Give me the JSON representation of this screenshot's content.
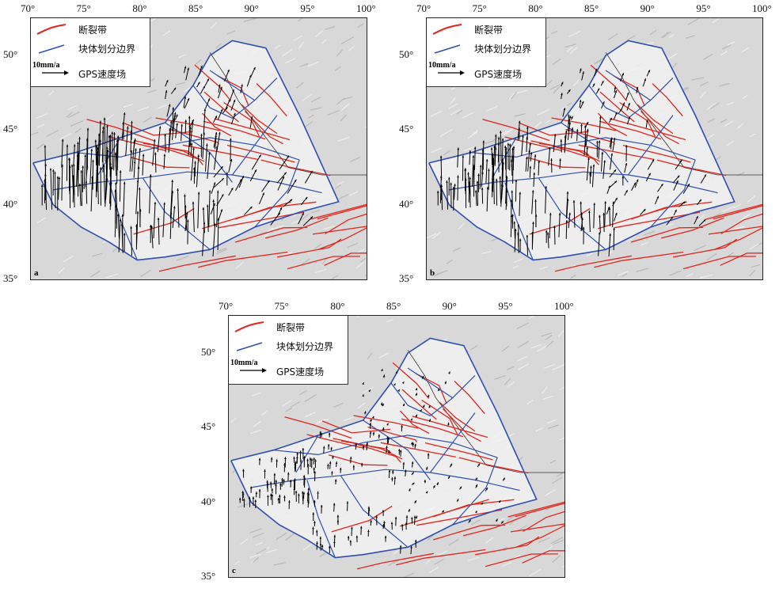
{
  "axes": {
    "lon_ticks": [
      "70°",
      "75°",
      "80°",
      "85°",
      "90°",
      "95°",
      "100°"
    ],
    "lat_ticks": [
      "50°",
      "45°",
      "40°",
      "35°"
    ]
  },
  "legend": {
    "fault": "断裂带",
    "block": "块体划分边界",
    "scale": "10mm/a",
    "gps": "GPS速度场"
  },
  "colors": {
    "fault": "#e0251c",
    "block": "#2d4fb0",
    "arrow": "#000000",
    "relief": "#cfcfcf"
  },
  "panels": [
    {
      "label": "a",
      "arrow_scale": 1.0
    },
    {
      "label": "b",
      "arrow_scale": 0.7
    },
    {
      "label": "c",
      "arrow_scale": 0.25
    }
  ]
}
